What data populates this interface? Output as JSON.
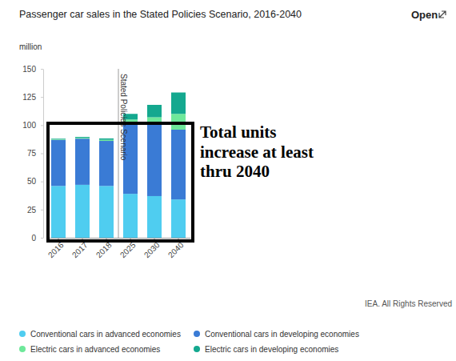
{
  "chart_data": {
    "type": "bar",
    "stacked": true,
    "title": "Passenger car sales in the Stated Policies Scenario, 2016-2040",
    "ylabel": "million",
    "categories": [
      "2016",
      "2017",
      "2018",
      "2025",
      "2030",
      "2040"
    ],
    "series": [
      {
        "name": "Conventional cars in advanced economies",
        "color": "#4fcdf0",
        "values": [
          46,
          47,
          46,
          39,
          37,
          34
        ]
      },
      {
        "name": "Conventional cars in developing economies",
        "color": "#3a7bd5",
        "values": [
          41,
          41,
          40,
          63,
          65,
          62
        ]
      },
      {
        "name": "Electric cars in advanced economies",
        "color": "#6ee89a",
        "values": [
          0.5,
          0.7,
          1,
          3,
          5,
          14
        ]
      },
      {
        "name": "Electric cars in developing economies",
        "color": "#14a88f",
        "values": [
          0.5,
          0.8,
          1.2,
          5,
          11,
          19
        ]
      }
    ],
    "ylim": [
      0,
      150
    ],
    "yticks": [
      0,
      25,
      50,
      75,
      100,
      125,
      150
    ],
    "grid": false,
    "legend": "bottom",
    "annotations": [
      {
        "text": "Open"
      },
      {
        "text": "Stated Policies Scenario",
        "x": "2025"
      },
      {
        "text": "IEA. All Rights Reserved"
      },
      {
        "lines": [
          "Total units",
          "increase at least",
          "thru 2040"
        ]
      }
    ]
  }
}
